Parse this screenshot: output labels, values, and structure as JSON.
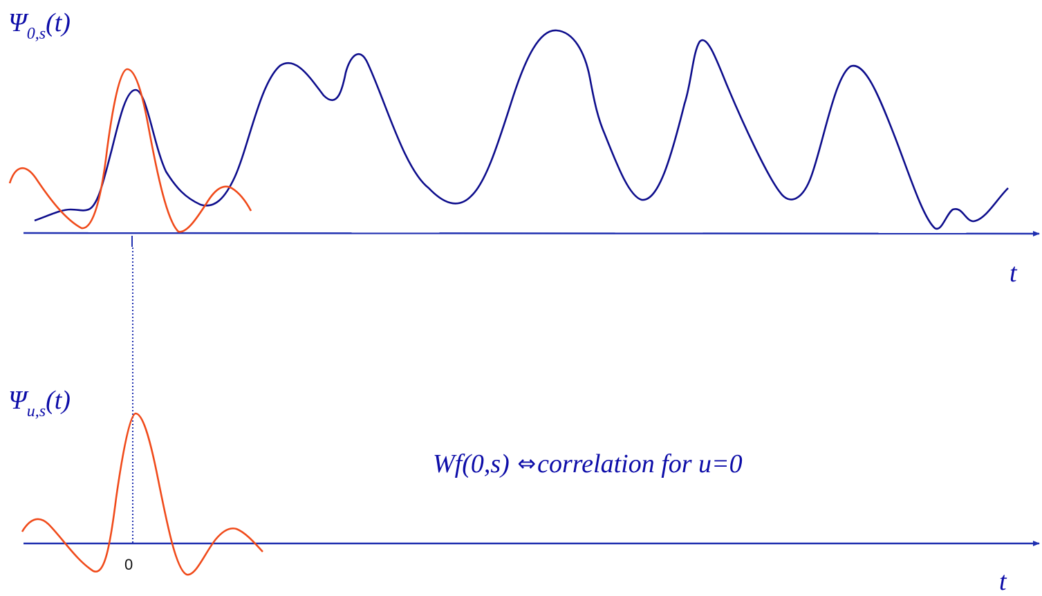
{
  "top_panel": {
    "label_symbol": "Ψ",
    "label_subscript": "0,s",
    "label_suffix": "(t)",
    "axis_label": "t"
  },
  "bottom_panel": {
    "label_symbol": "Ψ",
    "label_subscript": "u,s",
    "label_suffix": "(t)",
    "axis_label": "t",
    "origin_tick_label": "0"
  },
  "caption": {
    "left": "Wf(0,s)",
    "symbol": "⇔",
    "right": "correlation for u=0"
  },
  "colors": {
    "signal": "#0d0d8c",
    "wavelet": "#f04a1a",
    "axis": "#1f2fb0",
    "label": "#0d0da8"
  }
}
